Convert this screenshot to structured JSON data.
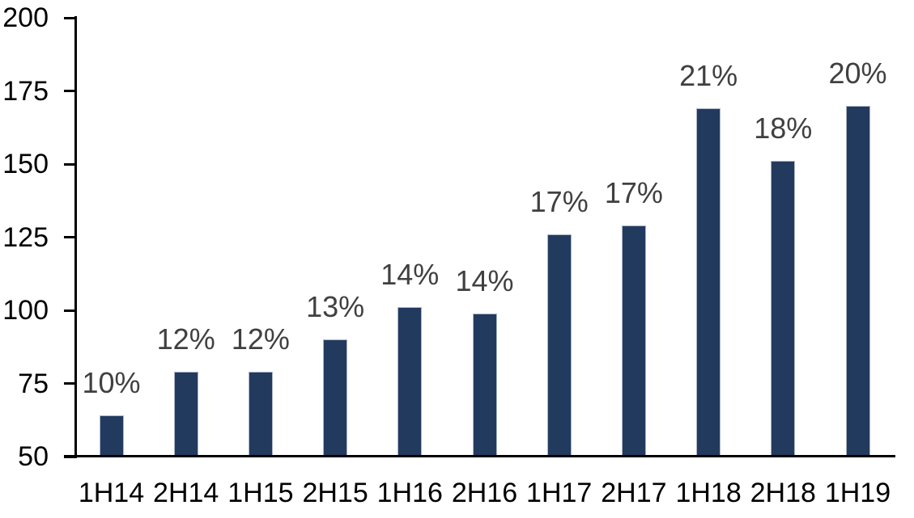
{
  "chart_data": {
    "type": "bar",
    "categories": [
      "1H14",
      "2H14",
      "1H15",
      "2H15",
      "1H16",
      "2H16",
      "1H17",
      "2H17",
      "1H18",
      "2H18",
      "1H19"
    ],
    "values": [
      64,
      79,
      79,
      90,
      101,
      99,
      126,
      129,
      169,
      151,
      170
    ],
    "bar_labels": [
      "10%",
      "12%",
      "12%",
      "13%",
      "14%",
      "14%",
      "17%",
      "17%",
      "21%",
      "18%",
      "20%"
    ],
    "title": "",
    "xlabel": "",
    "ylabel": "",
    "ylim": [
      50,
      200
    ],
    "yticks": [
      200,
      175,
      150,
      125,
      100,
      75,
      50
    ],
    "grid": false,
    "legend_position": "none",
    "colors": {
      "bar_fill": "#233a5f",
      "bar_border": "#adb5c7",
      "data_label": "#404040",
      "axis_text": "#000000",
      "axis_line": "#000000",
      "background": "#ffffff"
    }
  }
}
